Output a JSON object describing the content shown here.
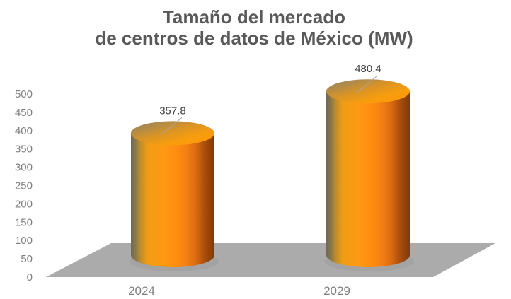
{
  "title": {
    "line1": "Tamaño del mercado",
    "line2": "de centros de datos de México (MW)"
  },
  "colors": {
    "background": "#FFFFFF",
    "title_text": "#595959",
    "axis_tick_text": "#7F7F7F",
    "category_text": "#7F7F7F",
    "value_label_text": "#3F3F3F",
    "leader_line": "#A6A6A6",
    "floor": "#ABABAB",
    "floor_shadow": "#9C9C9C",
    "cylinder_main": "#FF8F10",
    "cylinder_left_edge": "#6F6757",
    "cylinder_right_edge": "#7C3A0B"
  },
  "chart_data": {
    "type": "bar",
    "style": "3d-cylinder",
    "title": "Tamaño del mercado de centros de datos de México (MW)",
    "categories": [
      "2024",
      "2029"
    ],
    "values": [
      357.8,
      480.4
    ],
    "value_labels": [
      "357.8",
      "480.4"
    ],
    "xlabel": "",
    "ylabel": "",
    "ylim": [
      0,
      500
    ],
    "ytick_step": 50,
    "yticks": [
      0,
      50,
      100,
      150,
      200,
      250,
      300,
      350,
      400,
      450,
      500
    ],
    "grid": false,
    "legend": false,
    "data_labels_shown": true,
    "bar_color": "#FF8F10"
  }
}
